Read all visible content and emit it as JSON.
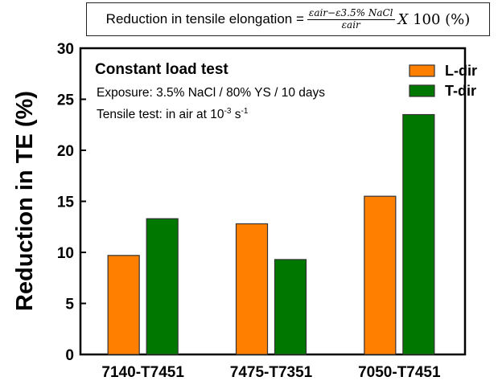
{
  "formula": {
    "lhs": "Reduction in tensile elongation =",
    "numerator": "εair−ε3.5% NaCl",
    "denominator": "εair",
    "multiplier_symbol": "X",
    "tail": "100 (%)"
  },
  "chart_data": {
    "type": "bar",
    "title": "",
    "xlabel": "",
    "ylabel": "Reduction in TE (%)",
    "ylim": [
      0,
      30
    ],
    "yticks": [
      0,
      5,
      10,
      15,
      20,
      25,
      30
    ],
    "categories": [
      "7140-T7451",
      "7475-T7351",
      "7050-T7451"
    ],
    "series": [
      {
        "name": "L-dir",
        "color": "#ff8000",
        "values": [
          9.7,
          12.8,
          15.5
        ]
      },
      {
        "name": "T-dir",
        "color": "#007800",
        "values": [
          13.3,
          9.3,
          23.5
        ]
      }
    ],
    "legend_position": "top-right",
    "grid": false,
    "annotations": {
      "heading": "Constant load test",
      "line1": "Exposure: 3.5% NaCl / 80% YS / 10 days",
      "line2_text": "Tensile test: in air at 10",
      "line2_exp1": "-3",
      "line2_unit": " s",
      "line2_exp2": "-1"
    }
  }
}
